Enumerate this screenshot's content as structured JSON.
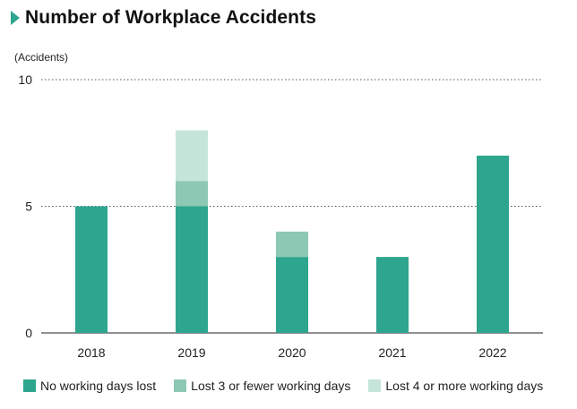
{
  "title": "Number of Workplace Accidents",
  "unit_label": "(Accidents)",
  "chart_data": {
    "type": "bar",
    "stacked": true,
    "title": "Number of Workplace Accidents",
    "ylabel": "(Accidents)",
    "xlabel": "",
    "categories": [
      "2018",
      "2019",
      "2020",
      "2021",
      "2022"
    ],
    "ylim": [
      0,
      10
    ],
    "yticks": [
      0,
      5,
      10
    ],
    "grid": "dotted horizontal at 5 and 10",
    "legend_position": "bottom",
    "series": [
      {
        "name": "No working days lost",
        "color": "#2ea58e",
        "values": [
          5,
          5,
          3,
          3,
          7
        ]
      },
      {
        "name": "Lost 3 or fewer working days",
        "color": "#8cc8b4",
        "values": [
          0,
          1,
          1,
          0,
          0
        ]
      },
      {
        "name": "Lost 4 or more working days",
        "color": "#c6e5da",
        "values": [
          0,
          2,
          0,
          0,
          0
        ]
      }
    ]
  }
}
